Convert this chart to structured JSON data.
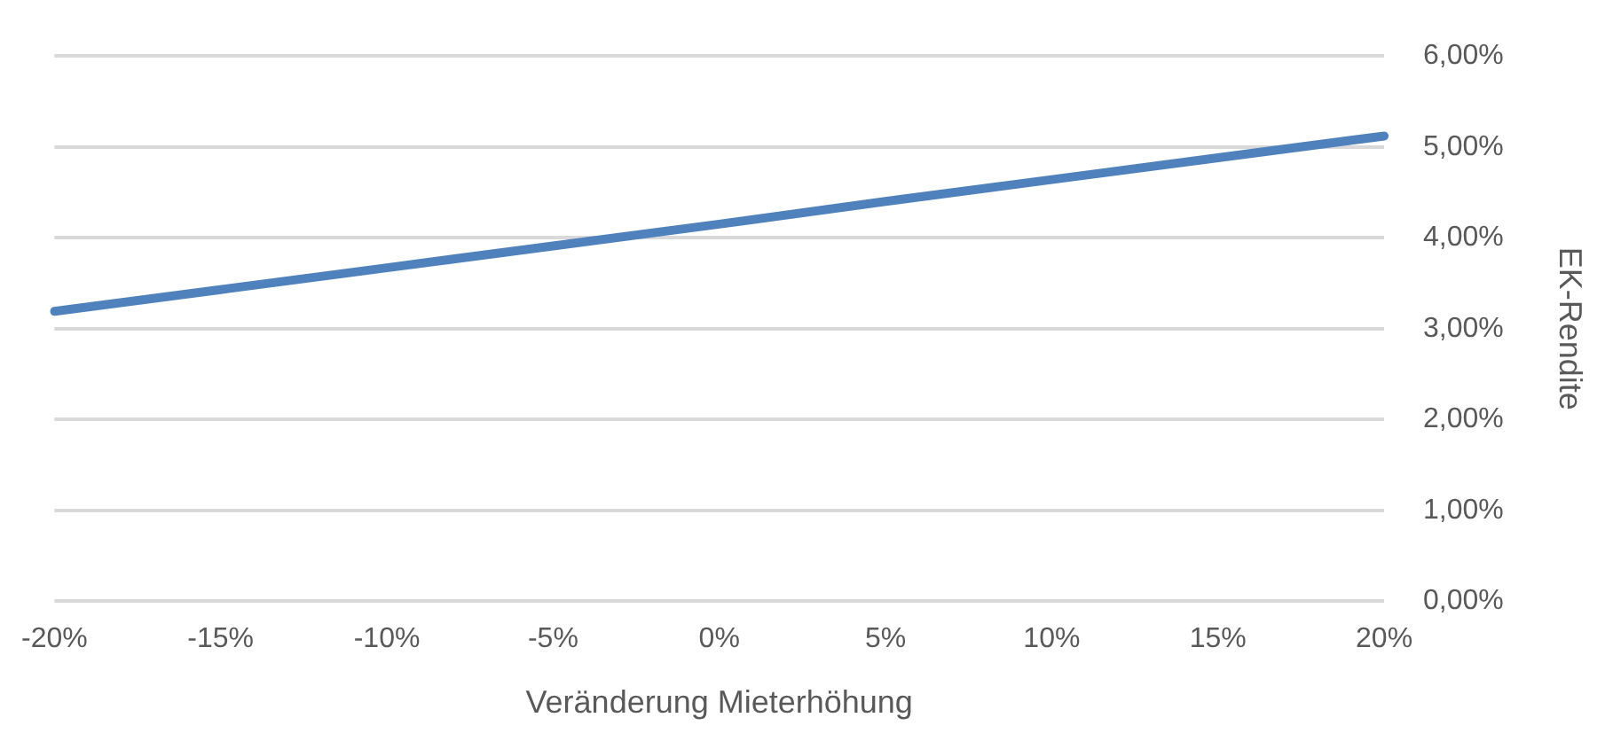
{
  "chart_data": {
    "type": "line",
    "xlabel": "Veränderung Mieterhöhung",
    "ylabel": "EK-Rendite",
    "categories": [
      "-20%",
      "-15%",
      "-10%",
      "-5%",
      "0%",
      "5%",
      "10%",
      "15%",
      "20%"
    ],
    "series": [
      {
        "color": "#4f81bd",
        "values": [
          3.19,
          3.43,
          3.67,
          3.91,
          4.15,
          4.4,
          4.64,
          4.88,
          5.12
        ]
      }
    ],
    "ylim": [
      0,
      6
    ],
    "yticks": [
      {
        "value": 0,
        "label": "0,00%"
      },
      {
        "value": 1,
        "label": "1,00%"
      },
      {
        "value": 2,
        "label": "2,00%"
      },
      {
        "value": 3,
        "label": "3,00%"
      },
      {
        "value": 4,
        "label": "4,00%"
      },
      {
        "value": 5,
        "label": "5,00%"
      },
      {
        "value": 6,
        "label": "6,00%"
      }
    ],
    "grid": "y",
    "legend": false,
    "marker": "none",
    "line_style": "solid"
  }
}
